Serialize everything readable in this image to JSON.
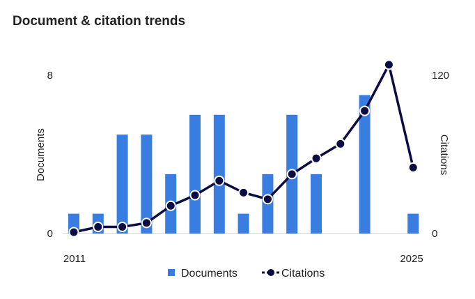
{
  "chart_data": {
    "type": "bar+line",
    "title": "Document & citation trends",
    "x": [
      2011,
      2012,
      2013,
      2014,
      2015,
      2016,
      2017,
      2018,
      2019,
      2020,
      2021,
      2022,
      2023,
      2024,
      2025
    ],
    "x_tick_labels": [
      "2011",
      "2025"
    ],
    "series": [
      {
        "name": "Documents",
        "type": "bar",
        "axis": "left",
        "color": "#3a7de0",
        "values": [
          1,
          1,
          5,
          5,
          3,
          6,
          6,
          1,
          3,
          6,
          3,
          null,
          7,
          null,
          1
        ]
      },
      {
        "name": "Citations",
        "type": "line",
        "axis": "right",
        "color": "#0c0c45",
        "values": [
          1,
          5,
          5,
          8,
          21,
          29,
          40,
          31,
          26,
          45,
          57,
          68,
          93,
          128,
          50
        ]
      }
    ],
    "y_left": {
      "label": "Documents",
      "range": [
        0,
        8
      ],
      "ticks": [
        "0",
        "8"
      ]
    },
    "y_right": {
      "label": "Citations",
      "range": [
        0,
        120
      ],
      "ticks": [
        "0",
        "120"
      ]
    },
    "legend": {
      "position": "bottom",
      "items": [
        "Documents",
        "Citations"
      ]
    },
    "grid": false
  }
}
